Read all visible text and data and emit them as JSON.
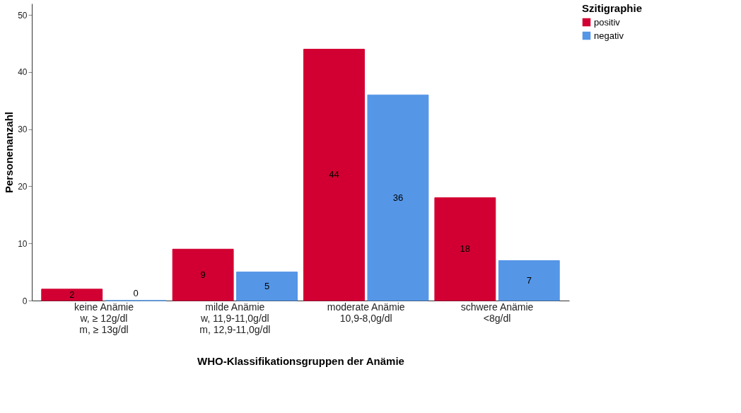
{
  "chart_data": {
    "type": "bar",
    "xlabel": "WHO-Klassifikationsgruppen der Anämie",
    "ylabel": "Personenanzahl",
    "legend_title": "Szitigraphie",
    "categories": [
      "keine Anämie\nw, ≥ 12g/dl\nm, ≥ 13g/dl",
      "milde Anämie\nw, 11,9-11,0g/dl\nm, 12,9-11,0g/dl",
      "moderate Anämie\n10,9-8,0g/dl",
      "schwere Anämie\n<8g/dl"
    ],
    "series": [
      {
        "name": "positiv",
        "color": "#d20032",
        "values": [
          2,
          9,
          44,
          18
        ]
      },
      {
        "name": "negativ",
        "color": "#5596e6",
        "values": [
          0,
          5,
          36,
          7
        ]
      }
    ],
    "ylim": [
      0,
      52
    ],
    "yticks": [
      0,
      10,
      20,
      30,
      40,
      50
    ],
    "grid": false,
    "legend": "top right",
    "data_labels": true
  }
}
